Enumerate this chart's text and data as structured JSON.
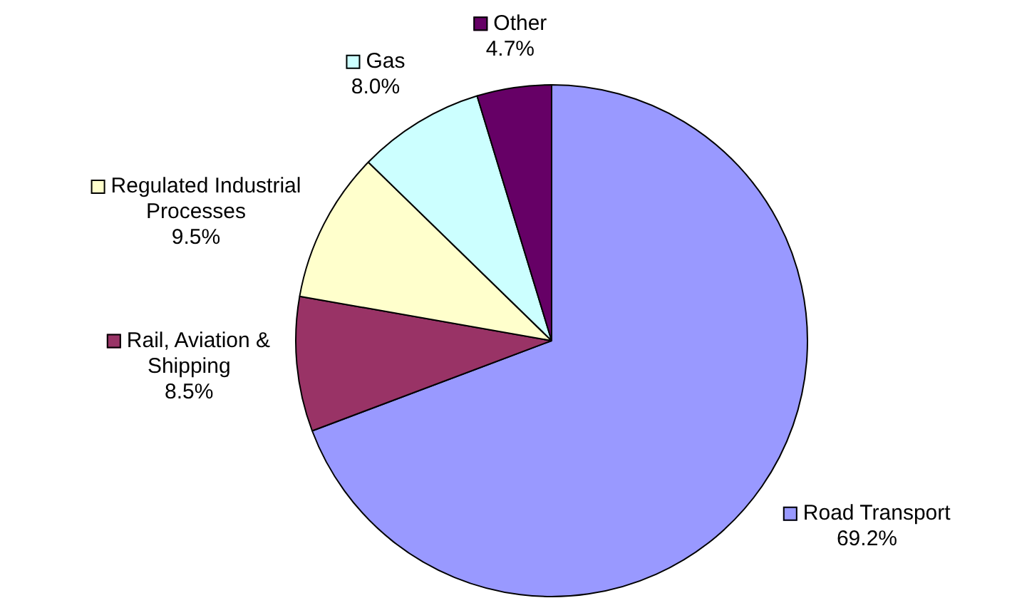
{
  "chart_data": {
    "type": "pie",
    "categories": [
      "Road Transport",
      "Rail, Aviation & Shipping",
      "Regulated Industrial Processes",
      "Gas",
      "Other"
    ],
    "values": [
      69.2,
      8.5,
      9.5,
      8.0,
      4.7
    ],
    "value_labels": [
      "69.2%",
      "8.5%",
      "9.5%",
      "8.0%",
      "4.7%"
    ],
    "colors": [
      "#9999ff",
      "#993366",
      "#ffffcc",
      "#ccffff",
      "#660066"
    ],
    "legend": true
  }
}
